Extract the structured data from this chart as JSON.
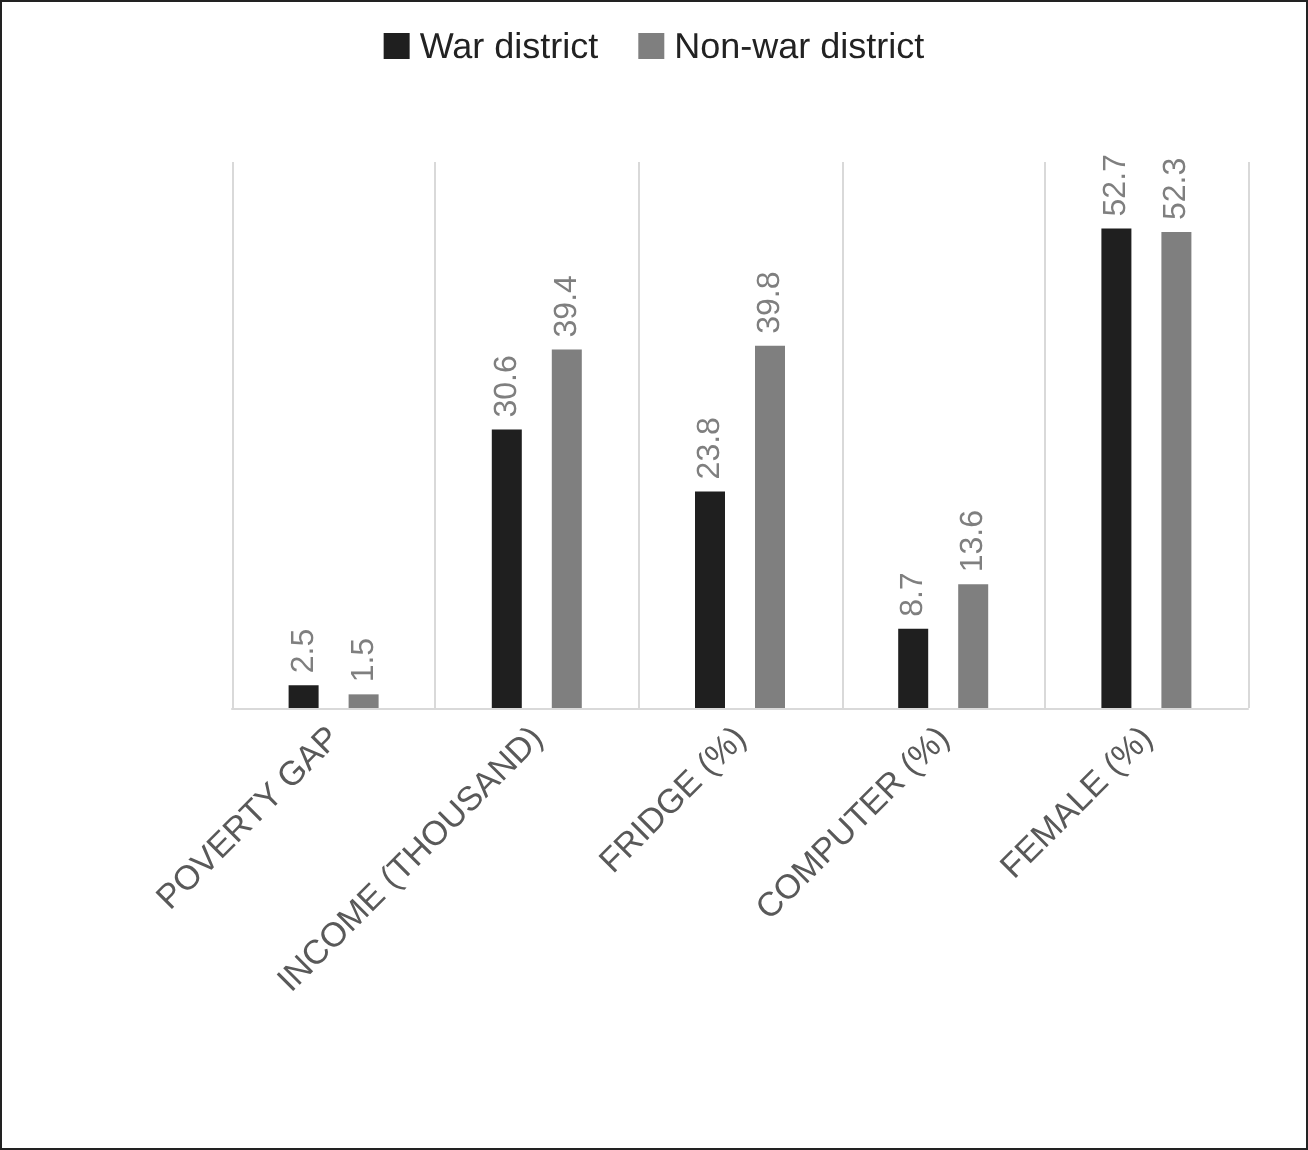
{
  "chart_data": {
    "type": "bar",
    "categories": [
      "POVERTY GAP",
      "INCOME (THOUSAND)",
      "FRIDGE (%)",
      "COMPUTER (%)",
      "FEMALE (%)"
    ],
    "series": [
      {
        "name": "War district",
        "color": "#1f1f1f",
        "values": [
          2.5,
          30.6,
          23.8,
          8.7,
          52.7
        ]
      },
      {
        "name": "Non-war district",
        "color": "#7f7f7f",
        "values": [
          1.5,
          39.4,
          39.8,
          13.6,
          52.3
        ]
      }
    ],
    "data_labels": true,
    "grid": "x",
    "legend": "top",
    "tick_labels": "x"
  }
}
